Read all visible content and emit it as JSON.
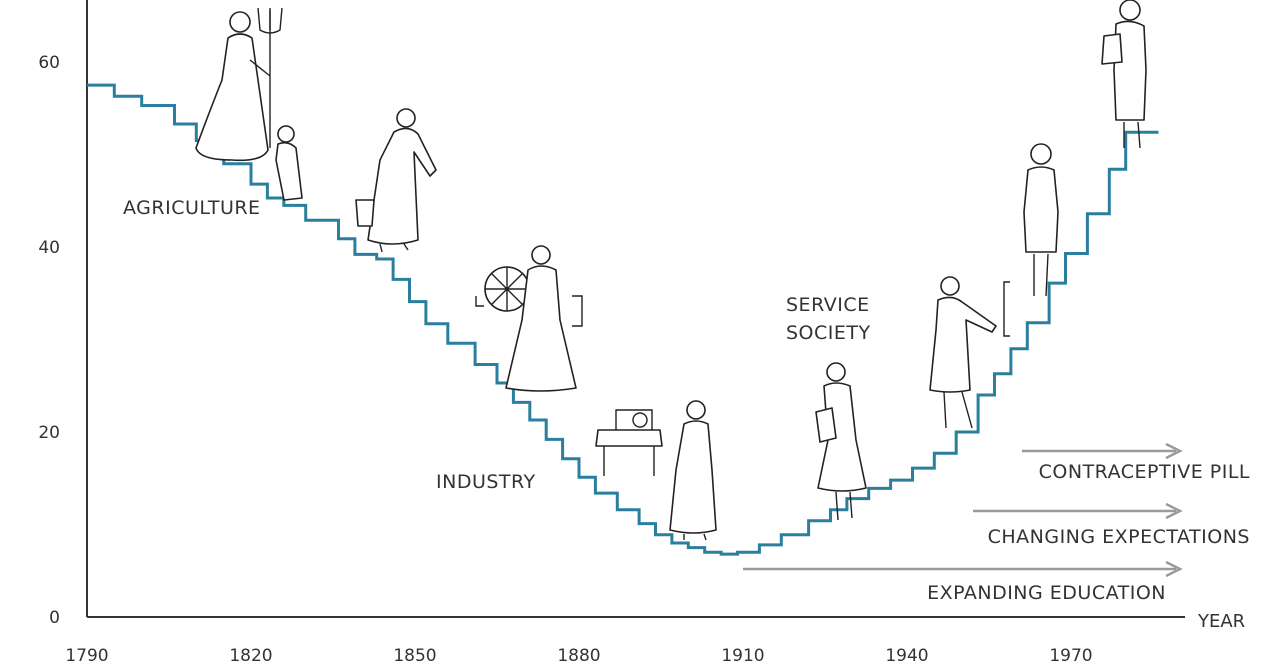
{
  "chart_data": {
    "type": "line",
    "line_style": "step",
    "title": "",
    "xlabel": "YEAR",
    "ylabel": "",
    "xlim": [
      1790,
      1985
    ],
    "ylim": [
      0,
      65
    ],
    "x_ticks": [
      1790,
      1820,
      1850,
      1880,
      1910,
      1940,
      1970
    ],
    "y_ticks": [
      0,
      20,
      40,
      60
    ],
    "grid": false,
    "series_color": "#2a7f9e",
    "series": [
      {
        "x": [
          1790,
          1795,
          1800,
          1806,
          1810,
          1815,
          1820,
          1823,
          1826,
          1830,
          1836,
          1839,
          1843,
          1846,
          1849,
          1852,
          1856,
          1861,
          1865,
          1868,
          1871,
          1874,
          1877,
          1880,
          1883,
          1887,
          1891,
          1894,
          1897,
          1900,
          1903,
          1906,
          1909,
          1913,
          1917,
          1922,
          1926,
          1929,
          1933,
          1937,
          1941,
          1945,
          1949,
          1953,
          1956,
          1959,
          1962,
          1966,
          1969,
          1973,
          1977,
          1980,
          1986
        ],
        "y": [
          57.5,
          56.3,
          55.3,
          53.3,
          51.5,
          49.0,
          46.8,
          45.3,
          44.5,
          42.9,
          40.9,
          39.2,
          38.7,
          36.5,
          34.1,
          31.7,
          29.6,
          27.3,
          25.3,
          23.2,
          21.3,
          19.2,
          17.1,
          15.1,
          13.4,
          11.6,
          10.1,
          8.9,
          8.0,
          7.5,
          7.0,
          6.8,
          7.0,
          7.8,
          8.9,
          10.4,
          11.6,
          12.8,
          13.9,
          14.8,
          16.1,
          17.7,
          20.0,
          24.0,
          26.3,
          29.0,
          31.8,
          36.1,
          39.3,
          43.6,
          48.4,
          52.4,
          54.7
        ]
      }
    ],
    "annotations": {
      "eras": [
        "AGRICULTURE",
        "INDUSTRY",
        "SERVICE",
        "SOCIETY"
      ],
      "factors": [
        "CONTRACEPTIVE PILL",
        "CHANGING EXPECTATIONS",
        "EXPANDING EDUCATION"
      ]
    }
  }
}
